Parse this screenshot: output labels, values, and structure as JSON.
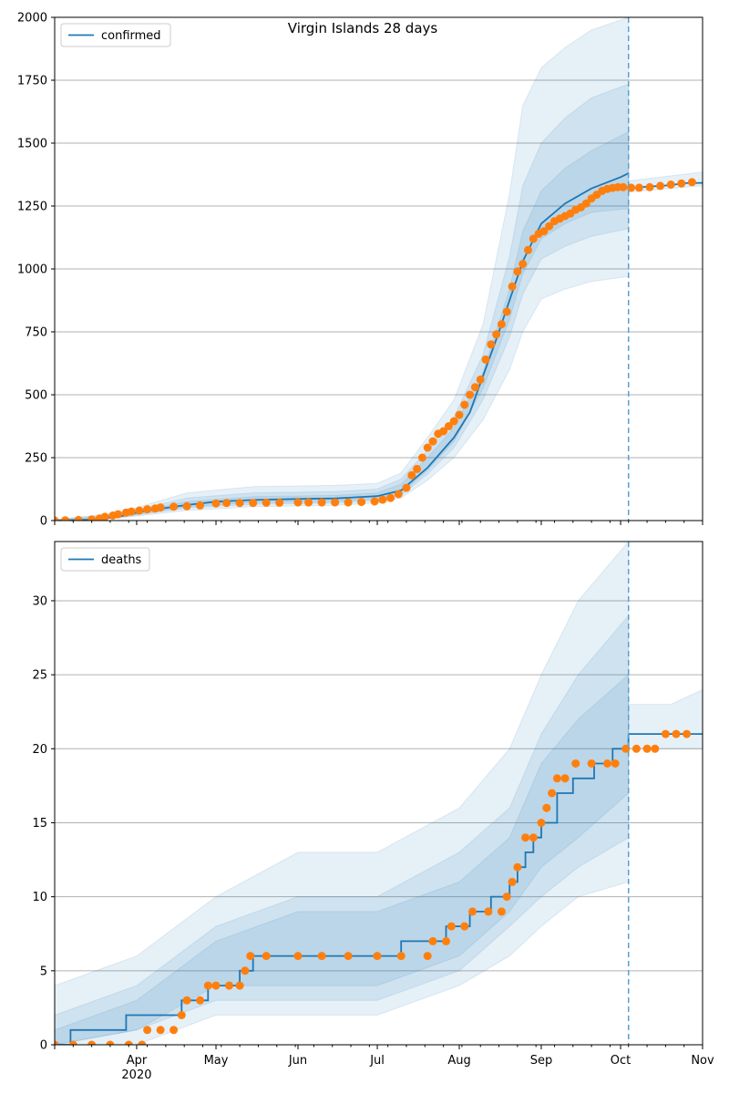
{
  "chart_data": [
    {
      "type": "line",
      "title": "Virgin Islands 28 days",
      "xlabel": "",
      "ylabel": "",
      "x_tick_labels": [
        "Apr",
        "May",
        "Jun",
        "Jul",
        "Aug",
        "Sep",
        "Oct",
        "Nov"
      ],
      "x_tick_dates": [
        "2020-04-01",
        "2020-05-01",
        "2020-06-01",
        "2020-07-01",
        "2020-08-01",
        "2020-09-01",
        "2020-10-01",
        "2020-11-01"
      ],
      "year_label": "2020",
      "xlim": [
        "2020-03-01",
        "2020-11-01"
      ],
      "ylim": [
        0,
        2000
      ],
      "y_ticks": [
        0,
        250,
        500,
        750,
        1000,
        1250,
        1500,
        1750,
        2000
      ],
      "grid": "horizontal",
      "legend": {
        "position": "top-left",
        "entries": [
          "confirmed"
        ]
      },
      "forecast_start": "2020-10-04",
      "series": [
        {
          "name": "confirmed",
          "kind": "model",
          "color": "#1f77b4",
          "x": [
            "2020-03-01",
            "2020-03-15",
            "2020-03-25",
            "2020-04-05",
            "2020-04-20",
            "2020-05-01",
            "2020-05-15",
            "2020-06-01",
            "2020-06-15",
            "2020-07-01",
            "2020-07-10",
            "2020-07-20",
            "2020-07-30",
            "2020-08-05",
            "2020-08-15",
            "2020-08-25",
            "2020-09-01",
            "2020-09-10",
            "2020-09-20",
            "2020-10-01",
            "2020-10-04"
          ],
          "values": [
            0,
            3,
            15,
            40,
            62,
            75,
            82,
            86,
            88,
            97,
            120,
            210,
            330,
            430,
            720,
            1030,
            1180,
            1260,
            1320,
            1365,
            1380
          ]
        },
        {
          "name": "forecast",
          "kind": "forecast",
          "color": "#1f77b4",
          "x": [
            "2020-10-04",
            "2020-10-10",
            "2020-10-20",
            "2020-10-25",
            "2020-11-01"
          ],
          "values": [
            1322,
            1326,
            1333,
            1341,
            1342
          ]
        }
      ],
      "bands": [
        {
          "x": [
            "2020-03-01",
            "2020-03-25",
            "2020-04-20",
            "2020-05-15",
            "2020-06-15",
            "2020-07-01",
            "2020-07-10",
            "2020-07-20",
            "2020-07-30",
            "2020-08-10",
            "2020-08-20",
            "2020-08-25",
            "2020-09-01",
            "2020-09-10",
            "2020-09-20",
            "2020-10-04"
          ],
          "upper": [
            5,
            30,
            110,
            135,
            140,
            148,
            190,
            330,
            480,
            780,
            1300,
            1650,
            1800,
            1880,
            1950,
            2000
          ],
          "lower": [
            0,
            10,
            40,
            55,
            60,
            70,
            90,
            160,
            250,
            400,
            600,
            750,
            880,
            920,
            950,
            970
          ]
        },
        {
          "x": [
            "2020-03-01",
            "2020-03-25",
            "2020-04-20",
            "2020-05-15",
            "2020-06-15",
            "2020-07-01",
            "2020-07-10",
            "2020-07-20",
            "2020-07-30",
            "2020-08-10",
            "2020-08-20",
            "2020-08-25",
            "2020-09-01",
            "2020-09-10",
            "2020-09-20",
            "2020-10-04"
          ],
          "upper": [
            3,
            25,
            90,
            110,
            115,
            125,
            165,
            280,
            410,
            660,
            1050,
            1330,
            1500,
            1600,
            1680,
            1735
          ],
          "lower": [
            0,
            12,
            50,
            65,
            70,
            80,
            100,
            185,
            290,
            480,
            730,
            900,
            1040,
            1090,
            1130,
            1160
          ]
        },
        {
          "x": [
            "2020-03-01",
            "2020-03-25",
            "2020-04-20",
            "2020-05-15",
            "2020-06-15",
            "2020-07-01",
            "2020-07-10",
            "2020-07-20",
            "2020-07-30",
            "2020-08-10",
            "2020-08-20",
            "2020-08-25",
            "2020-09-01",
            "2020-09-10",
            "2020-09-20",
            "2020-10-04"
          ],
          "upper": [
            2,
            20,
            75,
            95,
            100,
            110,
            145,
            250,
            370,
            590,
            920,
            1150,
            1310,
            1400,
            1470,
            1545
          ],
          "lower": [
            0,
            14,
            55,
            72,
            76,
            86,
            108,
            200,
            315,
            525,
            800,
            980,
            1120,
            1180,
            1225,
            1240
          ]
        },
        {
          "x": [
            "2020-10-04",
            "2020-10-20",
            "2020-11-01"
          ],
          "upper": [
            1350,
            1370,
            1385
          ],
          "lower": [
            1305,
            1320,
            1330
          ]
        }
      ],
      "observed": {
        "name": "observed",
        "color": "#ff7f0e",
        "x": [
          "2020-03-01",
          "2020-03-05",
          "2020-03-10",
          "2020-03-15",
          "2020-03-18",
          "2020-03-20",
          "2020-03-23",
          "2020-03-25",
          "2020-03-28",
          "2020-03-30",
          "2020-04-02",
          "2020-04-05",
          "2020-04-08",
          "2020-04-10",
          "2020-04-15",
          "2020-04-20",
          "2020-04-25",
          "2020-05-01",
          "2020-05-05",
          "2020-05-10",
          "2020-05-15",
          "2020-05-20",
          "2020-05-25",
          "2020-06-01",
          "2020-06-05",
          "2020-06-10",
          "2020-06-15",
          "2020-06-20",
          "2020-06-25",
          "2020-06-30",
          "2020-07-03",
          "2020-07-06",
          "2020-07-09",
          "2020-07-12",
          "2020-07-14",
          "2020-07-16",
          "2020-07-18",
          "2020-07-20",
          "2020-07-22",
          "2020-07-24",
          "2020-07-26",
          "2020-07-28",
          "2020-07-30",
          "2020-08-01",
          "2020-08-03",
          "2020-08-05",
          "2020-08-07",
          "2020-08-09",
          "2020-08-11",
          "2020-08-13",
          "2020-08-15",
          "2020-08-17",
          "2020-08-19",
          "2020-08-21",
          "2020-08-23",
          "2020-08-25",
          "2020-08-27",
          "2020-08-29",
          "2020-08-31",
          "2020-09-02",
          "2020-09-04",
          "2020-09-06",
          "2020-09-08",
          "2020-09-10",
          "2020-09-12",
          "2020-09-14",
          "2020-09-16",
          "2020-09-18",
          "2020-09-20",
          "2020-09-22",
          "2020-09-24",
          "2020-09-26",
          "2020-09-28",
          "2020-09-30",
          "2020-10-02",
          "2020-10-05",
          "2020-10-08",
          "2020-10-12",
          "2020-10-16",
          "2020-10-20",
          "2020-10-24",
          "2020-10-28"
        ],
        "values": [
          0,
          1,
          2,
          4,
          8,
          15,
          20,
          25,
          32,
          36,
          40,
          45,
          48,
          52,
          55,
          57,
          60,
          68,
          70,
          70,
          70,
          71,
          71,
          72,
          72,
          72,
          72,
          72,
          74,
          76,
          83,
          90,
          105,
          130,
          180,
          205,
          250,
          290,
          315,
          345,
          355,
          375,
          395,
          420,
          460,
          500,
          530,
          560,
          640,
          700,
          740,
          780,
          830,
          930,
          990,
          1020,
          1075,
          1120,
          1140,
          1150,
          1170,
          1190,
          1200,
          1210,
          1220,
          1235,
          1245,
          1260,
          1280,
          1295,
          1310,
          1318,
          1322,
          1325,
          1325,
          1323,
          1323,
          1325,
          1330,
          1335,
          1340,
          1345
        ]
      }
    },
    {
      "type": "line",
      "title": "",
      "xlabel": "",
      "ylabel": "",
      "x_tick_labels": [
        "Apr",
        "May",
        "Jun",
        "Jul",
        "Aug",
        "Sep",
        "Oct",
        "Nov"
      ],
      "x_tick_dates": [
        "2020-04-01",
        "2020-05-01",
        "2020-06-01",
        "2020-07-01",
        "2020-08-01",
        "2020-09-01",
        "2020-10-01",
        "2020-11-01"
      ],
      "year_label": "2020",
      "xlim": [
        "2020-03-01",
        "2020-11-01"
      ],
      "ylim": [
        0,
        34
      ],
      "y_ticks": [
        0,
        5,
        10,
        15,
        20,
        25,
        30
      ],
      "grid": "horizontal",
      "legend": {
        "position": "top-left",
        "entries": [
          "deaths"
        ]
      },
      "forecast_start": "2020-10-04",
      "series": [
        {
          "name": "deaths",
          "kind": "model",
          "step": true,
          "color": "#1f77b4",
          "x": [
            "2020-03-01",
            "2020-03-07",
            "2020-03-28",
            "2020-04-18",
            "2020-04-28",
            "2020-05-10",
            "2020-05-15",
            "2020-07-10",
            "2020-07-27",
            "2020-08-05",
            "2020-08-13",
            "2020-08-20",
            "2020-08-23",
            "2020-08-26",
            "2020-08-29",
            "2020-09-01",
            "2020-09-07",
            "2020-09-13",
            "2020-09-21",
            "2020-09-28",
            "2020-10-04"
          ],
          "values": [
            0,
            1,
            2,
            3,
            4,
            5,
            6,
            7,
            8,
            9,
            10,
            11,
            12,
            13,
            14,
            15,
            17,
            18,
            19,
            20,
            21
          ]
        },
        {
          "name": "forecast",
          "kind": "forecast",
          "step": true,
          "color": "#1f77b4",
          "x": [
            "2020-10-04",
            "2020-11-01"
          ],
          "values": [
            21,
            21
          ]
        }
      ],
      "bands": [
        {
          "x": [
            "2020-03-01",
            "2020-04-01",
            "2020-05-01",
            "2020-06-01",
            "2020-07-01",
            "2020-08-01",
            "2020-08-20",
            "2020-09-01",
            "2020-09-15",
            "2020-10-04"
          ],
          "upper": [
            4,
            6,
            10,
            13,
            13,
            16,
            20,
            25,
            30,
            34
          ],
          "lower": [
            0,
            0,
            2,
            2,
            2,
            4,
            6,
            8,
            10,
            11
          ]
        },
        {
          "x": [
            "2020-03-01",
            "2020-04-01",
            "2020-05-01",
            "2020-06-01",
            "2020-07-01",
            "2020-08-01",
            "2020-08-20",
            "2020-09-01",
            "2020-09-15",
            "2020-10-04"
          ],
          "upper": [
            2,
            4,
            8,
            10,
            10,
            13,
            16,
            21,
            25,
            29
          ],
          "lower": [
            0,
            1,
            3,
            3,
            3,
            5,
            8,
            10,
            12,
            14
          ]
        },
        {
          "x": [
            "2020-03-01",
            "2020-04-01",
            "2020-05-01",
            "2020-06-01",
            "2020-07-01",
            "2020-08-01",
            "2020-08-20",
            "2020-09-01",
            "2020-09-15",
            "2020-10-04"
          ],
          "upper": [
            1,
            3,
            7,
            9,
            9,
            11,
            14,
            19,
            22,
            25
          ],
          "lower": [
            0,
            1,
            4,
            4,
            4,
            6,
            9,
            12,
            14,
            17
          ]
        },
        {
          "x": [
            "2020-10-04",
            "2020-10-20",
            "2020-11-01"
          ],
          "upper": [
            23,
            23,
            24
          ],
          "lower": [
            20,
            20,
            20
          ]
        }
      ],
      "observed": {
        "name": "observed",
        "color": "#ff7f0e",
        "x": [
          "2020-03-01",
          "2020-03-08",
          "2020-03-15",
          "2020-03-22",
          "2020-03-29",
          "2020-04-03",
          "2020-04-05",
          "2020-04-10",
          "2020-04-15",
          "2020-04-18",
          "2020-04-20",
          "2020-04-25",
          "2020-04-28",
          "2020-05-01",
          "2020-05-06",
          "2020-05-10",
          "2020-05-12",
          "2020-05-14",
          "2020-05-20",
          "2020-06-01",
          "2020-06-10",
          "2020-06-20",
          "2020-07-01",
          "2020-07-10",
          "2020-07-20",
          "2020-07-22",
          "2020-07-27",
          "2020-07-29",
          "2020-08-03",
          "2020-08-06",
          "2020-08-12",
          "2020-08-17",
          "2020-08-19",
          "2020-08-21",
          "2020-08-23",
          "2020-08-26",
          "2020-08-29",
          "2020-09-01",
          "2020-09-03",
          "2020-09-05",
          "2020-09-07",
          "2020-09-10",
          "2020-09-14",
          "2020-09-20",
          "2020-09-26",
          "2020-09-29",
          "2020-10-03",
          "2020-10-07",
          "2020-10-11",
          "2020-10-14",
          "2020-10-18",
          "2020-10-22",
          "2020-10-26"
        ],
        "values": [
          0,
          0,
          0,
          0,
          0,
          0,
          1,
          1,
          1,
          2,
          3,
          3,
          4,
          4,
          4,
          4,
          5,
          6,
          6,
          6,
          6,
          6,
          6,
          6,
          6,
          7,
          7,
          8,
          8,
          9,
          9,
          9,
          10,
          11,
          12,
          14,
          14,
          15,
          16,
          17,
          18,
          18,
          19,
          19,
          19,
          19,
          20,
          20,
          20,
          20,
          21,
          21,
          21
        ]
      }
    }
  ]
}
